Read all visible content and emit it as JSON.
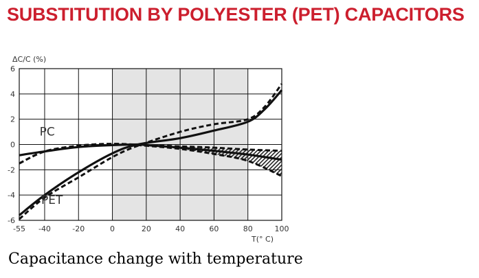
{
  "heading": {
    "text": "SUBSTITUTION BY POLYESTER (PET) CAPACITORS",
    "color": "#cc1f2e"
  },
  "caption": "Capacitance change with temperature",
  "chart_data": {
    "type": "line",
    "title": "",
    "xlabel": "T(° C)",
    "ylabel": "ΔC/C (%)",
    "xlim": [
      -55,
      100
    ],
    "ylim": [
      -6,
      6
    ],
    "x_ticks": [
      "-55",
      "-40",
      "-20",
      "0",
      "20",
      "40",
      "60",
      "80",
      "100"
    ],
    "y_ticks": [
      "6",
      "4",
      "2",
      "0",
      "-2",
      "-4",
      "-6"
    ],
    "grid": true,
    "shaded_region": {
      "x_from": 0,
      "x_to": 80,
      "color": "#e4e4e4"
    },
    "series": [
      {
        "name": "PC",
        "style": "solid",
        "x": [
          -55,
          -40,
          -20,
          0,
          15,
          20,
          40,
          60,
          80,
          100
        ],
        "y": [
          -0.85,
          -0.55,
          -0.2,
          -0.05,
          0,
          -0.05,
          -0.25,
          -0.5,
          -0.8,
          -1.2
        ]
      },
      {
        "name": "",
        "style": "dashed",
        "x": [
          -55,
          -40,
          -20,
          0,
          20,
          40,
          60,
          80,
          100
        ],
        "y": [
          -1.5,
          -0.55,
          -0.1,
          0.05,
          -0.1,
          -0.35,
          -0.75,
          -1.3,
          -2.5
        ]
      },
      {
        "name": "",
        "style": "dashed",
        "x": [
          -55,
          -40,
          -20,
          0,
          20,
          40,
          60,
          80,
          100
        ],
        "y": [
          -1.5,
          -0.55,
          -0.1,
          0.05,
          -0.05,
          -0.15,
          -0.25,
          -0.4,
          -0.5
        ]
      },
      {
        "name": "PET",
        "style": "solid",
        "x": [
          -55,
          -40,
          -20,
          0,
          15,
          40,
          60,
          80,
          90,
          100
        ],
        "y": [
          -5.6,
          -4.0,
          -2.2,
          -0.7,
          0,
          0.5,
          1.1,
          1.8,
          2.8,
          4.3
        ]
      },
      {
        "name": "",
        "style": "dashed",
        "x": [
          -55,
          -40,
          -20,
          0,
          15,
          40,
          60,
          80,
          90,
          100
        ],
        "y": [
          -5.9,
          -4.2,
          -2.6,
          -1.0,
          -0.1,
          1.0,
          1.6,
          2.0,
          3.0,
          4.8
        ]
      }
    ],
    "hatched_band": {
      "x_from": 18,
      "x_to": 100
    },
    "series_labels": [
      {
        "text": "PC",
        "x": -43,
        "y": 0.7
      },
      {
        "text": "PET",
        "x": -42,
        "y": -4.7
      }
    ]
  }
}
